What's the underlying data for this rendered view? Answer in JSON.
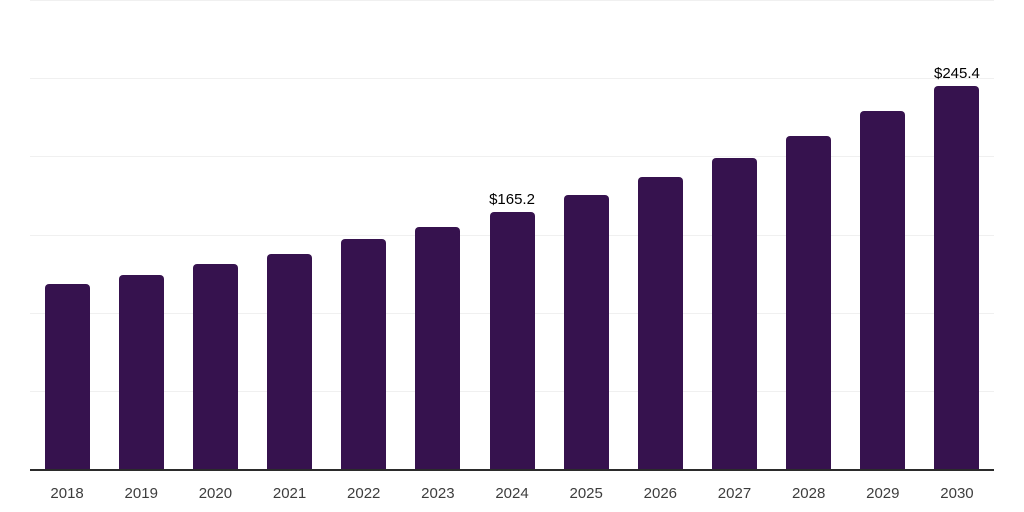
{
  "chart_data": {
    "type": "bar",
    "title": "",
    "xlabel": "",
    "ylabel": "",
    "categories": [
      "2018",
      "2019",
      "2020",
      "2021",
      "2022",
      "2023",
      "2024",
      "2025",
      "2026",
      "2027",
      "2028",
      "2029",
      "2030"
    ],
    "values": [
      118.7,
      124.9,
      131.7,
      138.4,
      147.6,
      155.5,
      165.2,
      175.9,
      187.3,
      199.5,
      213.9,
      229.5,
      245.4
    ],
    "data_labels": [
      "",
      "",
      "",
      "",
      "",
      "",
      "$165.2",
      "",
      "",
      "",
      "",
      "",
      "$245.4"
    ],
    "ylim": [
      0,
      300
    ],
    "grid_step": 50,
    "grid": true,
    "legend": false,
    "y_tick_labels_visible": false,
    "colors": {
      "bar": "#36124E",
      "gridline": "#F0F0F0",
      "axis_line": "#2B2B2B",
      "tick_label": "#3D3D3D",
      "data_label": "#000000",
      "background": "#FFFFFF"
    }
  }
}
